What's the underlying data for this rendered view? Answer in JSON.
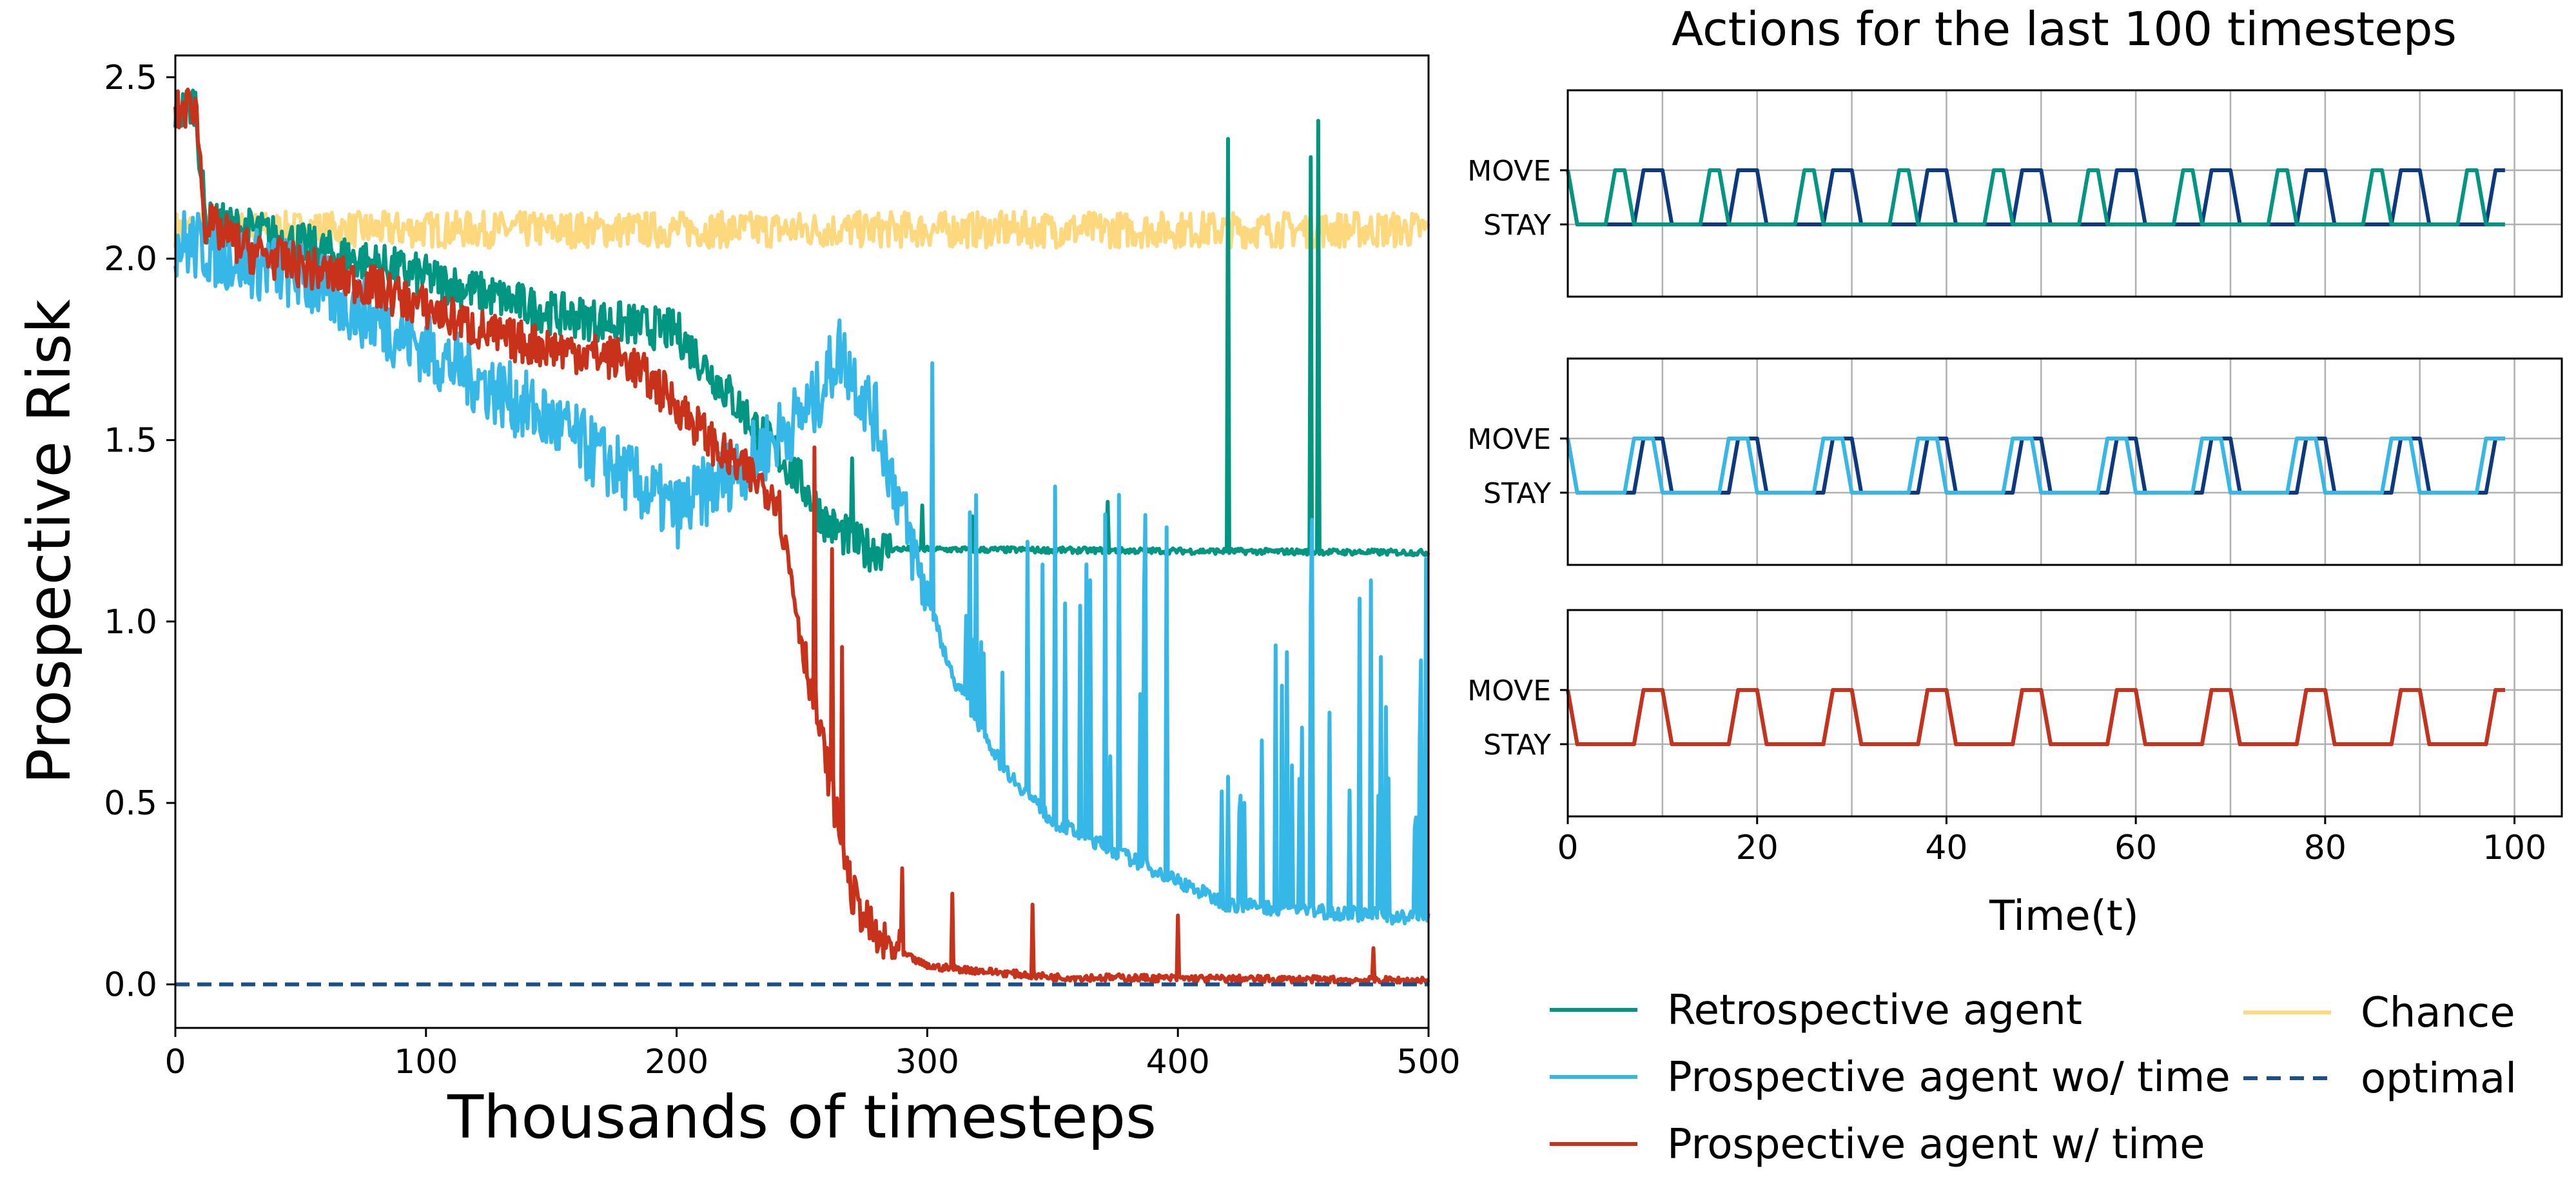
{
  "colors": {
    "retrospective": "#009682",
    "prospective_wo_time": "#35b8e8",
    "prospective_w_time": "#c8321a",
    "chance": "#fdd87c",
    "optimal": "#1a4f8b",
    "dark_action": "#0b3a80"
  },
  "chart_data": [
    {
      "type": "line",
      "xlabel": "Thousands of timesteps",
      "ylabel": "Prospective Risk",
      "xlim": [
        0,
        500
      ],
      "ylim": [
        -0.12,
        2.56
      ],
      "xticks": [
        0,
        100,
        200,
        300,
        400,
        500
      ],
      "yticks": [
        "0.0",
        "0.5",
        "1.0",
        "1.5",
        "2.0",
        "2.5"
      ],
      "series": [
        {
          "name": "Chance",
          "key": "chance",
          "style": "noisy",
          "points": [
            [
              0,
              2.08
            ],
            [
              500,
              2.08
            ]
          ],
          "noise": 0.05,
          "spikes": []
        },
        {
          "name": "Retrospective agent",
          "key": "retrospective",
          "style": "noisy",
          "points": [
            [
              0,
              2.4
            ],
            [
              8,
              2.43
            ],
            [
              12,
              2.1
            ],
            [
              30,
              2.08
            ],
            [
              60,
              2.02
            ],
            [
              100,
              1.95
            ],
            [
              150,
              1.85
            ],
            [
              200,
              1.8
            ],
            [
              230,
              1.55
            ],
            [
              250,
              1.38
            ],
            [
              260,
              1.27
            ],
            [
              275,
              1.2
            ],
            [
              500,
              1.19
            ]
          ],
          "noise": 0.06,
          "spikes": [
            [
              270,
              1.45
            ],
            [
              298,
              1.32
            ],
            [
              318,
              1.29
            ],
            [
              372,
              1.33
            ],
            [
              420,
              2.33
            ],
            [
              453,
              2.28
            ],
            [
              456,
              2.38
            ]
          ]
        },
        {
          "name": "Prospective agent wo/ time",
          "key": "prospective_wo_time",
          "style": "noisy",
          "points": [
            [
              0,
              2.05
            ],
            [
              50,
              1.95
            ],
            [
              100,
              1.75
            ],
            [
              150,
              1.55
            ],
            [
              200,
              1.3
            ],
            [
              230,
              1.45
            ],
            [
              255,
              1.6
            ],
            [
              265,
              1.75
            ],
            [
              280,
              1.55
            ],
            [
              295,
              1.18
            ],
            [
              310,
              0.85
            ],
            [
              330,
              0.6
            ],
            [
              350,
              0.45
            ],
            [
              380,
              0.35
            ],
            [
              420,
              0.22
            ],
            [
              500,
              0.18
            ]
          ],
          "noise": 0.1,
          "spikes": [
            [
              318,
              0.95
            ],
            [
              340,
              1.22
            ],
            [
              355,
              1.05
            ],
            [
              385,
              0.8
            ],
            [
              425,
              0.52
            ],
            [
              453,
              1.04
            ],
            [
              480,
              0.52
            ],
            [
              495,
              0.46
            ]
          ]
        },
        {
          "name": "Prospective agent w/ time",
          "key": "prospective_w_time",
          "style": "noisy",
          "points": [
            [
              0,
              2.4
            ],
            [
              8,
              2.43
            ],
            [
              12,
              2.1
            ],
            [
              30,
              2.02
            ],
            [
              80,
              1.92
            ],
            [
              130,
              1.78
            ],
            [
              180,
              1.72
            ],
            [
              200,
              1.6
            ],
            [
              220,
              1.45
            ],
            [
              240,
              1.35
            ],
            [
              250,
              0.95
            ],
            [
              260,
              0.6
            ],
            [
              270,
              0.25
            ],
            [
              280,
              0.12
            ],
            [
              300,
              0.05
            ],
            [
              350,
              0.02
            ],
            [
              500,
              0.01
            ]
          ],
          "noise": 0.06,
          "spikes": [
            [
              255,
              1.48
            ],
            [
              262,
              1.2
            ],
            [
              266,
              0.93
            ],
            [
              290,
              0.32
            ],
            [
              310,
              0.25
            ],
            [
              342,
              0.22
            ],
            [
              400,
              0.19
            ],
            [
              478,
              0.1
            ]
          ]
        },
        {
          "name": "optimal",
          "key": "optimal",
          "style": "dashed",
          "points": [
            [
              0,
              0.0
            ],
            [
              500,
              0.0
            ]
          ]
        }
      ]
    },
    {
      "type": "line",
      "title": "Actions for the last 100 timesteps",
      "xlabel": "Time(t)",
      "xlim": [
        0,
        105
      ],
      "xticks": [
        0,
        20,
        40,
        60,
        80,
        100
      ],
      "categories": [
        "MOVE",
        "STAY"
      ],
      "panels": [
        {
          "name": "retrospective-actions",
          "series": [
            {
              "key": "dark_action",
              "pattern": "optimal"
            },
            {
              "key": "retrospective",
              "pattern": "retro"
            }
          ]
        },
        {
          "name": "prospective-wo-time-actions",
          "series": [
            {
              "key": "dark_action",
              "pattern": "optimal"
            },
            {
              "key": "prospective_wo_time",
              "pattern": "early"
            }
          ]
        },
        {
          "name": "prospective-w-time-actions",
          "series": [
            {
              "key": "dark_action",
              "pattern": "optimal"
            },
            {
              "key": "prospective_w_time",
              "pattern": "optimal"
            }
          ]
        }
      ]
    }
  ],
  "legend": [
    {
      "label": "Retrospective agent",
      "key": "retrospective",
      "dashed": false
    },
    {
      "label": "Prospective agent wo/ time",
      "key": "prospective_wo_time",
      "dashed": false
    },
    {
      "label": "Prospective agent w/ time",
      "key": "prospective_w_time",
      "dashed": false
    },
    {
      "label": "Chance",
      "key": "chance",
      "dashed": false
    },
    {
      "label": "optimal",
      "key": "optimal",
      "dashed": true
    }
  ]
}
